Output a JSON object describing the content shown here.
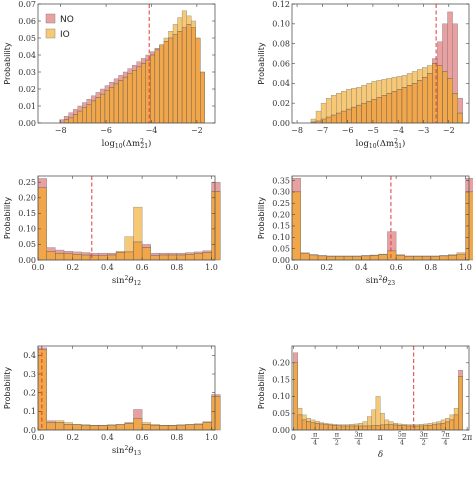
{
  "colors": {
    "NO": "#e8a0a0",
    "IO": "#f7c977",
    "overlap": "#f2a64a",
    "refline": "#e03a3a",
    "frame": "#555555"
  },
  "legend": {
    "NO": "NO",
    "IO": "IO"
  },
  "chart_data": [
    {
      "type": "bar",
      "id": "p1",
      "ylabel": "Probability",
      "xlabel": "log10(Δm²21)",
      "xlim": [
        -9,
        -1.2
      ],
      "ylim": [
        0,
        0.07
      ],
      "xticks": [
        -8,
        -6,
        -4,
        -2
      ],
      "xticklabels": [
        "−8",
        "−6",
        "−4",
        "−2"
      ],
      "yticks": [
        0,
        0.01,
        0.02,
        0.03,
        0.04,
        0.05,
        0.06,
        0.07
      ],
      "yticklabels": [
        "0.00",
        "0.01",
        "0.02",
        "0.03",
        "0.04",
        "0.05",
        "0.06",
        "0.07"
      ],
      "bins": {
        "start": -8.25,
        "width": 0.2
      },
      "reference_x": -4.1,
      "legend": true,
      "series": [
        {
          "name": "NO",
          "values": [
            0.0,
            0.002,
            0.004,
            0.006,
            0.008,
            0.01,
            0.012,
            0.014,
            0.016,
            0.018,
            0.02,
            0.022,
            0.024,
            0.026,
            0.028,
            0.03,
            0.032,
            0.034,
            0.036,
            0.038,
            0.04,
            0.042,
            0.044,
            0.046,
            0.048,
            0.05,
            0.052,
            0.054,
            0.056,
            0.058,
            0.056,
            0.05,
            0.03
          ]
        },
        {
          "name": "IO",
          "values": [
            0.0,
            0.0,
            0.002,
            0.003,
            0.005,
            0.007,
            0.009,
            0.011,
            0.013,
            0.015,
            0.017,
            0.019,
            0.021,
            0.023,
            0.025,
            0.027,
            0.029,
            0.031,
            0.033,
            0.035,
            0.037,
            0.04,
            0.043,
            0.046,
            0.05,
            0.054,
            0.058,
            0.062,
            0.066,
            0.063,
            0.06,
            0.05,
            0.03
          ]
        }
      ]
    },
    {
      "type": "bar",
      "id": "p2",
      "ylabel": "Probability",
      "xlabel": "log10(Δm²31)",
      "xlim": [
        -8.2,
        -1.2
      ],
      "ylim": [
        0,
        0.12
      ],
      "xticks": [
        -8,
        -7,
        -6,
        -5,
        -4,
        -3,
        -2
      ],
      "xticklabels": [
        "−8",
        "−7",
        "−6",
        "−5",
        "−4",
        "−3",
        "−2"
      ],
      "yticks": [
        0,
        0.02,
        0.04,
        0.06,
        0.08,
        0.1,
        0.12
      ],
      "yticklabels": [
        "0.00",
        "0.02",
        "0.04",
        "0.06",
        "0.08",
        "0.10",
        "0.12"
      ],
      "bins": {
        "start": -7.45,
        "width": 0.2
      },
      "reference_x": -2.5,
      "legend": false,
      "series": [
        {
          "name": "NO",
          "values": [
            0.001,
            0.002,
            0.004,
            0.006,
            0.008,
            0.01,
            0.012,
            0.014,
            0.016,
            0.018,
            0.02,
            0.022,
            0.024,
            0.026,
            0.028,
            0.03,
            0.032,
            0.034,
            0.036,
            0.038,
            0.04,
            0.043,
            0.046,
            0.05,
            0.065,
            0.082,
            0.1,
            0.112,
            0.1,
            0.025
          ]
        },
        {
          "name": "IO",
          "values": [
            0.004,
            0.012,
            0.02,
            0.025,
            0.028,
            0.03,
            0.032,
            0.034,
            0.035,
            0.036,
            0.038,
            0.04,
            0.042,
            0.043,
            0.044,
            0.045,
            0.046,
            0.047,
            0.048,
            0.05,
            0.052,
            0.054,
            0.056,
            0.058,
            0.06,
            0.058,
            0.052,
            0.045,
            0.03,
            0.01
          ]
        }
      ]
    },
    {
      "type": "bar",
      "id": "p3",
      "ylabel": "Probability",
      "xlabel": "sin²θ12",
      "xlim": [
        0,
        1.02
      ],
      "ylim": [
        0,
        0.27
      ],
      "xticks": [
        0,
        0.2,
        0.4,
        0.6,
        0.8,
        1.0
      ],
      "xticklabels": [
        "0.0",
        "0.2",
        "0.4",
        "0.6",
        "0.8",
        "1.0"
      ],
      "yticks": [
        0,
        0.05,
        0.1,
        0.15,
        0.2,
        0.25
      ],
      "yticklabels": [
        "0.00",
        "0.05",
        "0.10",
        "0.15",
        "0.20",
        "0.25"
      ],
      "bins": {
        "start": 0.0,
        "width": 0.05
      },
      "reference_x": 0.31,
      "legend": false,
      "series": [
        {
          "name": "NO",
          "values": [
            0.262,
            0.04,
            0.032,
            0.028,
            0.026,
            0.024,
            0.022,
            0.022,
            0.022,
            0.024,
            0.026,
            0.058,
            0.05,
            0.022,
            0.022,
            0.022,
            0.022,
            0.024,
            0.026,
            0.03,
            0.25
          ]
        },
        {
          "name": "IO",
          "values": [
            0.232,
            0.028,
            0.022,
            0.02,
            0.018,
            0.016,
            0.014,
            0.014,
            0.016,
            0.028,
            0.075,
            0.17,
            0.04,
            0.014,
            0.016,
            0.016,
            0.016,
            0.018,
            0.02,
            0.024,
            0.22
          ]
        }
      ]
    },
    {
      "type": "bar",
      "id": "p4",
      "ylabel": "Probability",
      "xlabel": "sin²θ23",
      "xlim": [
        0,
        1.02
      ],
      "ylim": [
        0,
        0.37
      ],
      "xticks": [
        0,
        0.2,
        0.4,
        0.6,
        0.8,
        1.0
      ],
      "xticklabels": [
        "0.0",
        "0.2",
        "0.4",
        "0.6",
        "0.8",
        "1.0"
      ],
      "yticks": [
        0,
        0.05,
        0.1,
        0.15,
        0.2,
        0.25,
        0.3,
        0.35
      ],
      "yticklabels": [
        "0.00",
        "0.05",
        "0.10",
        "0.15",
        "0.20",
        "0.25",
        "0.30",
        "0.35"
      ],
      "bins": {
        "start": 0.0,
        "width": 0.05
      },
      "reference_x": 0.57,
      "legend": false,
      "series": [
        {
          "name": "NO",
          "values": [
            0.36,
            0.03,
            0.022,
            0.018,
            0.016,
            0.016,
            0.016,
            0.016,
            0.018,
            0.02,
            0.024,
            0.125,
            0.02,
            0.016,
            0.016,
            0.016,
            0.016,
            0.018,
            0.02,
            0.026,
            0.36
          ]
        },
        {
          "name": "IO",
          "values": [
            0.3,
            0.032,
            0.024,
            0.02,
            0.018,
            0.018,
            0.018,
            0.018,
            0.02,
            0.022,
            0.026,
            0.04,
            0.024,
            0.018,
            0.018,
            0.018,
            0.018,
            0.02,
            0.024,
            0.032,
            0.3
          ]
        }
      ]
    },
    {
      "type": "bar",
      "id": "p5",
      "ylabel": "Probability",
      "xlabel": "sin²θ13",
      "xlim": [
        0,
        1.02
      ],
      "ylim": [
        0,
        0.45
      ],
      "xticks": [
        0,
        0.2,
        0.4,
        0.6,
        0.8,
        1.0
      ],
      "xticklabels": [
        "0.0",
        "0.2",
        "0.4",
        "0.6",
        "0.8",
        "1.0"
      ],
      "yticks": [
        0,
        0.1,
        0.2,
        0.3,
        0.4
      ],
      "yticklabels": [
        "0.0",
        "0.1",
        "0.2",
        "0.3",
        "0.4"
      ],
      "bins": {
        "start": 0.0,
        "width": 0.05
      },
      "reference_x": 0.022,
      "legend": false,
      "series": [
        {
          "name": "NO",
          "values": [
            0.44,
            0.05,
            0.04,
            0.03,
            0.028,
            0.026,
            0.024,
            0.024,
            0.026,
            0.028,
            0.04,
            0.11,
            0.03,
            0.024,
            0.024,
            0.024,
            0.026,
            0.028,
            0.03,
            0.04,
            0.19
          ]
        },
        {
          "name": "IO",
          "values": [
            0.43,
            0.04,
            0.05,
            0.04,
            0.03,
            0.028,
            0.026,
            0.026,
            0.028,
            0.03,
            0.035,
            0.06,
            0.04,
            0.03,
            0.026,
            0.026,
            0.028,
            0.03,
            0.034,
            0.045,
            0.18
          ]
        }
      ]
    },
    {
      "type": "bar",
      "id": "p6",
      "ylabel": "Probability",
      "xlabel": "δ",
      "xlim": [
        -0.05,
        6.35
      ],
      "ylim": [
        0,
        0.25
      ],
      "xticks": [
        0,
        0.785,
        1.571,
        2.356,
        3.142,
        3.927,
        4.712,
        5.498,
        6.283
      ],
      "xticklabels": [
        "0",
        "π/4",
        "π/2",
        "3π/4",
        "π",
        "5π/4",
        "3π/2",
        "7π/4",
        "2π"
      ],
      "yticks": [
        0,
        0.05,
        0.1,
        0.15,
        0.2
      ],
      "yticklabels": [
        "0.00",
        "0.05",
        "0.10",
        "0.15",
        "0.20"
      ],
      "bins": {
        "start": 0.0,
        "width": 0.157
      },
      "reference_x": 4.35,
      "legend": false,
      "series": [
        {
          "name": "NO",
          "values": [
            0.23,
            0.045,
            0.03,
            0.026,
            0.022,
            0.02,
            0.018,
            0.016,
            0.015,
            0.014,
            0.013,
            0.012,
            0.012,
            0.012,
            0.012,
            0.012,
            0.012,
            0.012,
            0.013,
            0.014,
            0.015,
            0.016,
            0.016,
            0.015,
            0.014,
            0.013,
            0.012,
            0.012,
            0.012,
            0.012,
            0.013,
            0.014,
            0.016,
            0.018,
            0.02,
            0.024,
            0.03,
            0.045,
            0.178,
            0.0
          ]
        },
        {
          "name": "IO",
          "values": [
            0.2,
            0.065,
            0.045,
            0.035,
            0.03,
            0.026,
            0.022,
            0.02,
            0.018,
            0.017,
            0.016,
            0.016,
            0.016,
            0.017,
            0.018,
            0.02,
            0.025,
            0.04,
            0.06,
            0.1,
            0.05,
            0.03,
            0.025,
            0.02,
            0.018,
            0.017,
            0.016,
            0.016,
            0.016,
            0.017,
            0.018,
            0.02,
            0.022,
            0.025,
            0.03,
            0.035,
            0.045,
            0.065,
            0.16,
            0.0
          ]
        }
      ]
    }
  ]
}
